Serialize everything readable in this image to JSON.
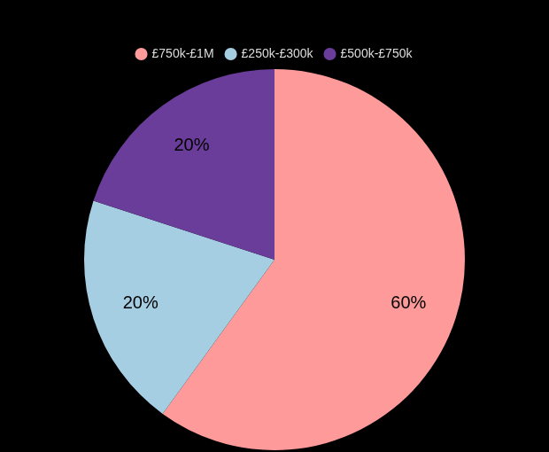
{
  "chart_data": {
    "type": "pie",
    "categories": [
      "£750k-£1M",
      "£250k-£300k",
      "£500k-£750k"
    ],
    "values": [
      60,
      20,
      20
    ],
    "value_labels": [
      "60%",
      "20%",
      "20%"
    ],
    "colors": [
      "#fe9a9a",
      "#a6cee3",
      "#6a3d9a"
    ],
    "data_labels": true,
    "legend": "top"
  }
}
